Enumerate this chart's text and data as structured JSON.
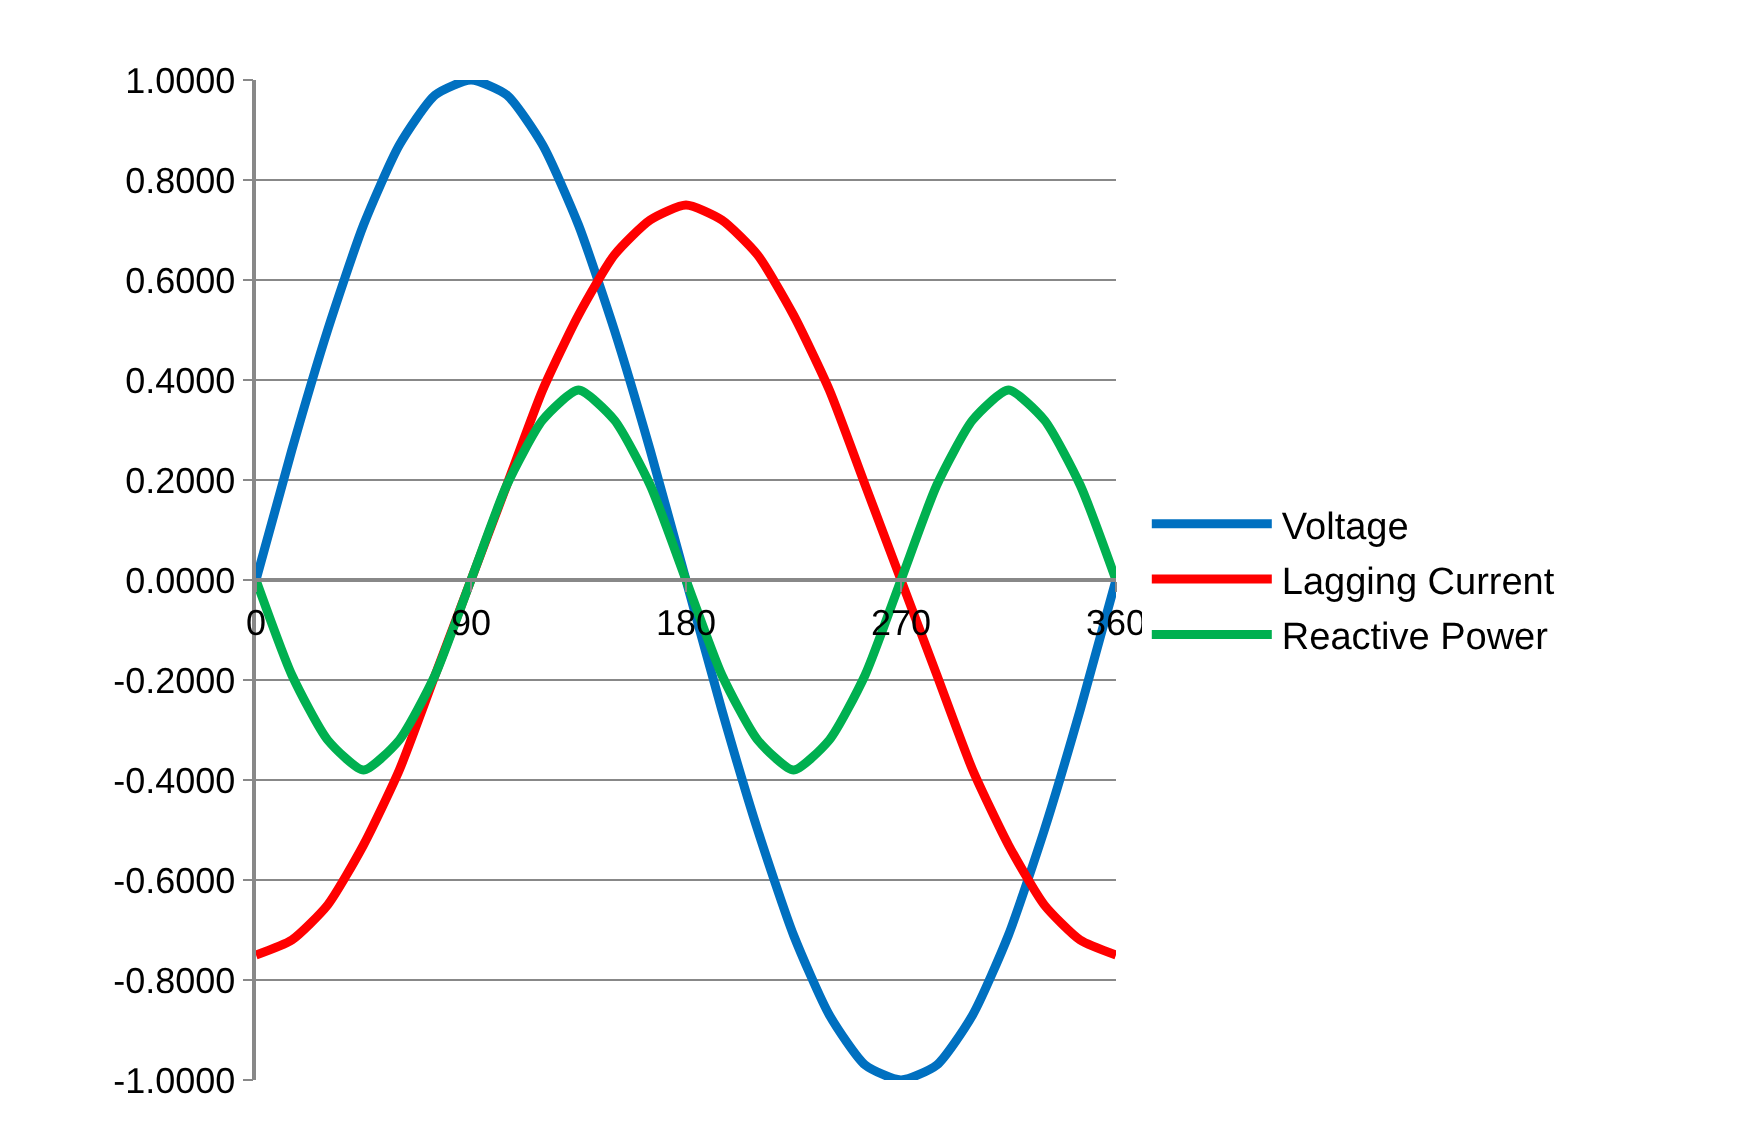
{
  "chart_data": {
    "type": "line",
    "x": [
      0,
      15,
      30,
      45,
      60,
      75,
      90,
      105,
      120,
      135,
      150,
      165,
      180,
      195,
      210,
      225,
      240,
      255,
      270,
      285,
      300,
      315,
      330,
      345,
      360
    ],
    "series": [
      {
        "name": "Voltage",
        "color": "#0070c0",
        "values": [
          0,
          0.26,
          0.5,
          0.71,
          0.87,
          0.97,
          1,
          0.97,
          0.87,
          0.71,
          0.5,
          0.26,
          0,
          -0.26,
          -0.5,
          -0.71,
          -0.87,
          -0.97,
          -1,
          -0.97,
          -0.87,
          -0.71,
          -0.5,
          -0.26,
          0
        ]
      },
      {
        "name": "Lagging Current",
        "color": "#ff0000",
        "values": [
          -0.75,
          -0.72,
          -0.65,
          -0.53,
          -0.38,
          -0.19,
          0,
          0.19,
          0.38,
          0.53,
          0.65,
          0.72,
          0.75,
          0.72,
          0.65,
          0.53,
          0.38,
          0.19,
          0,
          -0.19,
          -0.38,
          -0.53,
          -0.65,
          -0.72,
          -0.75
        ]
      },
      {
        "name": "Reactive Power",
        "color": "#00b050",
        "values": [
          0,
          -0.19,
          -0.32,
          -0.38,
          -0.32,
          -0.19,
          0,
          0.19,
          0.32,
          0.38,
          0.32,
          0.19,
          0,
          -0.19,
          -0.32,
          -0.38,
          -0.32,
          -0.19,
          0,
          0.19,
          0.32,
          0.38,
          0.32,
          0.19,
          0
        ]
      }
    ],
    "xlim": [
      0,
      360
    ],
    "xticks": [
      0,
      90,
      180,
      270,
      360
    ],
    "ylim": [
      -1,
      1
    ],
    "yticks": [
      {
        "value": -1,
        "label": "-1.0000"
      },
      {
        "value": -0.8,
        "label": "-0.8000"
      },
      {
        "value": -0.6,
        "label": "-0.6000"
      },
      {
        "value": -0.4,
        "label": "-0.4000"
      },
      {
        "value": -0.2,
        "label": "-0.2000"
      },
      {
        "value": 0,
        "label": "0.0000"
      },
      {
        "value": 0.2,
        "label": "0.2000"
      },
      {
        "value": 0.4,
        "label": "0.4000"
      },
      {
        "value": 0.6,
        "label": "0.6000"
      },
      {
        "value": 0.8,
        "label": "0.8000"
      },
      {
        "value": 1,
        "label": "1.0000"
      }
    ],
    "grid": "y",
    "legend": "right",
    "marker": "none",
    "line_style": "solid"
  }
}
